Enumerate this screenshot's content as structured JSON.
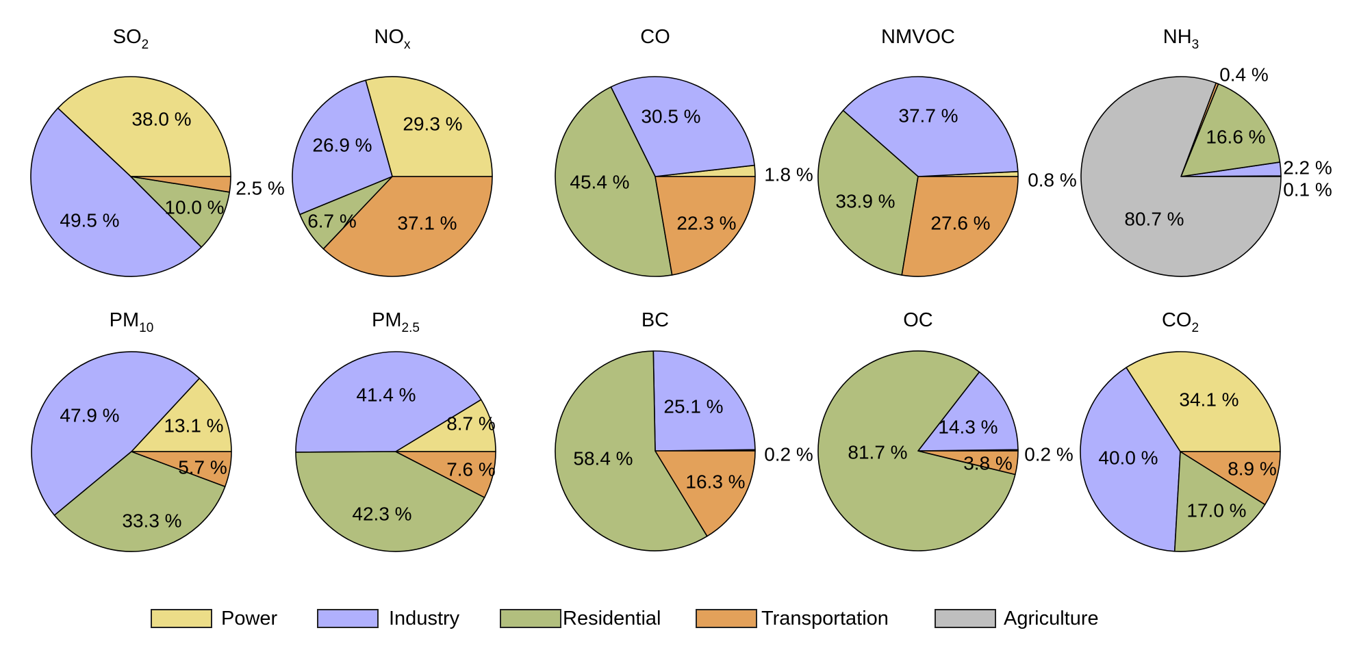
{
  "chart_data": {
    "type": "pie",
    "categories": [
      "Power",
      "Industry",
      "Residential",
      "Transportation",
      "Agriculture"
    ],
    "colors": {
      "Power": "#ecdd88",
      "Industry": "#b0b0fd",
      "Residential": "#b2bf7e",
      "Transportation": "#e3a15a",
      "Agriculture": "#bfbfbf"
    },
    "legend": {
      "placement": "bottom",
      "entries": [
        "Power",
        "Industry",
        "Residential",
        "Transportation",
        "Agriculture"
      ]
    },
    "charts": [
      {
        "title": "SO",
        "title_sub": "2",
        "values": {
          "Power": 38.0,
          "Industry": 49.5,
          "Residential": 10.0,
          "Transportation": 2.5
        },
        "labels": {
          "Power": "38.0 %",
          "Industry": "49.5 %",
          "Residential": "10.0 %",
          "Transportation": "2.5 %"
        }
      },
      {
        "title": "NO",
        "title_sub": "x",
        "values": {
          "Power": 29.3,
          "Industry": 26.9,
          "Residential": 6.7,
          "Transportation": 37.1
        },
        "labels": {
          "Power": "29.3 %",
          "Industry": "26.9 %",
          "Residential": "6.7 %",
          "Transportation": "37.1 %"
        }
      },
      {
        "title": "CO",
        "title_sub": "",
        "values": {
          "Power": 1.8,
          "Industry": 30.5,
          "Residential": 45.4,
          "Transportation": 22.3
        },
        "labels": {
          "Power": "1.8 %",
          "Industry": "30.5 %",
          "Residential": "45.4 %",
          "Transportation": "22.3 %"
        }
      },
      {
        "title": "NMVOC",
        "title_sub": "",
        "values": {
          "Power": 0.8,
          "Industry": 37.7,
          "Residential": 33.9,
          "Transportation": 27.6
        },
        "labels": {
          "Power": "0.8 %",
          "Industry": "37.7 %",
          "Residential": "33.9 %",
          "Transportation": "27.6 %"
        }
      },
      {
        "title": "NH",
        "title_sub": "3",
        "values": {
          "Power": 0.1,
          "Industry": 2.2,
          "Residential": 16.6,
          "Transportation": 0.4,
          "Agriculture": 80.7
        },
        "labels": {
          "Power": "0.1 %",
          "Industry": "2.2 %",
          "Residential": "16.6 %",
          "Transportation": "0.4 %",
          "Agriculture": "80.7 %"
        }
      },
      {
        "title": "PM",
        "title_sub": "10",
        "values": {
          "Power": 13.1,
          "Industry": 47.9,
          "Residential": 33.3,
          "Transportation": 5.7
        },
        "labels": {
          "Power": "13.1 %",
          "Industry": "47.9 %",
          "Residential": "33.3 %",
          "Transportation": "5.7 %"
        }
      },
      {
        "title": "PM",
        "title_sub": "2.5",
        "values": {
          "Power": 8.7,
          "Industry": 41.4,
          "Residential": 42.3,
          "Transportation": 7.6
        },
        "labels": {
          "Power": "8.7 %",
          "Industry": "41.4 %",
          "Residential": "42.3 %",
          "Transportation": "7.6 %"
        }
      },
      {
        "title": "BC",
        "title_sub": "",
        "values": {
          "Power": 0.2,
          "Industry": 25.1,
          "Residential": 58.4,
          "Transportation": 16.3
        },
        "labels": {
          "Power": "0.2 %",
          "Industry": "25.1 %",
          "Residential": "58.4 %",
          "Transportation": "16.3 %"
        }
      },
      {
        "title": "OC",
        "title_sub": "",
        "values": {
          "Power": 0.2,
          "Industry": 14.3,
          "Residential": 81.7,
          "Transportation": 3.8
        },
        "labels": {
          "Power": "0.2 %",
          "Industry": "14.3 %",
          "Residential": "81.7 %",
          "Transportation": "3.8 %"
        }
      },
      {
        "title": "CO",
        "title_sub": "2",
        "values": {
          "Power": 34.1,
          "Industry": 40.0,
          "Residential": 17.0,
          "Transportation": 8.9
        },
        "labels": {
          "Power": "34.1 %",
          "Industry": "40.0 %",
          "Residential": "17.0 %",
          "Transportation": "8.9 %"
        }
      }
    ]
  }
}
